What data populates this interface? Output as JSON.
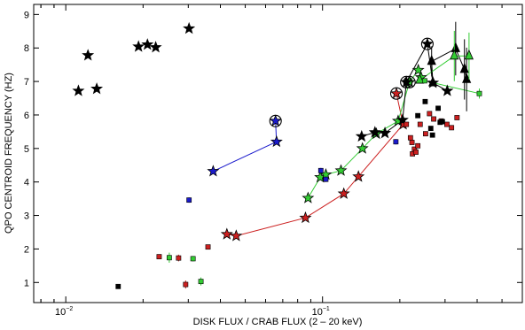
{
  "chart_data": {
    "type": "scatter",
    "xlabel": "DISK FLUX / CRAB FLUX (2 – 20 keV)",
    "ylabel": "QPO CENTROID FREQUENCY (HZ)",
    "x_scale": "log",
    "xlim": [
      0.0075,
      0.6
    ],
    "ylim": [
      0.4,
      9.3
    ],
    "x_ticks": [
      {
        "value": 0.01,
        "base": "10",
        "exp": "−2"
      },
      {
        "value": 0.1,
        "base": "10",
        "exp": "−1"
      }
    ],
    "y_ticks": [
      1,
      2,
      3,
      4,
      5,
      6,
      7,
      8,
      9
    ],
    "colors": {
      "black": "#000000",
      "blue": "#1a1acc",
      "red": "#cc2020",
      "green": "#33cc33",
      "darkred": "#a00000"
    },
    "series": [
      {
        "marker": "star",
        "color": "#000000",
        "connected": false,
        "points": [
          [
            0.0112,
            6.72
          ],
          [
            0.0122,
            7.78
          ],
          [
            0.0132,
            6.78
          ],
          [
            0.0192,
            8.04
          ],
          [
            0.0208,
            8.1
          ],
          [
            0.0224,
            8.02
          ],
          [
            0.0302,
            8.58
          ]
        ]
      },
      {
        "marker": "star",
        "color": "#1a1acc",
        "connected": true,
        "points": [
          [
            0.0375,
            4.32
          ],
          [
            0.0662,
            5.2
          ],
          [
            0.0656,
            5.82
          ]
        ],
        "circled": [
          [
            0.0656,
            5.82
          ]
        ]
      },
      {
        "marker": "star",
        "color": "#cc2020",
        "connected": true,
        "points": [
          [
            0.0424,
            2.44
          ],
          [
            0.0461,
            2.39
          ],
          [
            0.0858,
            2.93
          ],
          [
            0.121,
            3.65
          ],
          [
            0.138,
            4.16
          ],
          [
            0.206,
            5.72
          ],
          [
            0.194,
            6.64
          ]
        ],
        "circled": [
          [
            0.194,
            6.64
          ]
        ]
      },
      {
        "marker": "star",
        "color": "#33cc33",
        "connected": true,
        "points": [
          [
            0.0878,
            3.52
          ],
          [
            0.098,
            4.14
          ],
          [
            0.103,
            4.22
          ],
          [
            0.118,
            4.34
          ],
          [
            0.143,
            5.0
          ],
          [
            0.162,
            5.44
          ],
          [
            0.197,
            5.82
          ],
          [
            0.218,
            6.98
          ],
          [
            0.236,
            7.34
          ],
          [
            0.242,
            7.12
          ]
        ],
        "circled": [
          [
            0.218,
            6.98
          ]
        ]
      },
      {
        "marker": "star",
        "color": "#000000",
        "connected": true,
        "points": [
          [
            0.142,
            5.36
          ],
          [
            0.16,
            5.48
          ],
          [
            0.175,
            5.46
          ],
          [
            0.205,
            5.85
          ],
          [
            0.212,
            6.98
          ],
          [
            0.256,
            8.12
          ],
          [
            0.269,
            6.96
          ],
          [
            0.306,
            6.72
          ]
        ],
        "circled": [
          [
            0.256,
            8.12
          ],
          [
            0.212,
            6.98
          ]
        ]
      },
      {
        "marker": "triangle",
        "color": "#000000",
        "connected": true,
        "points": [
          [
            0.269,
            6.96
          ],
          [
            0.266,
            7.6
          ],
          [
            0.33,
            7.98
          ],
          [
            0.357,
            7.36
          ],
          [
            0.364,
            7.06
          ]
        ],
        "errors": [
          0,
          0.45,
          0.8,
          0.9,
          0.95
        ]
      },
      {
        "marker": "triangle",
        "color": "#33cc33",
        "connected": true,
        "points": [
          [
            0.239,
            7.04
          ],
          [
            0.326,
            7.76
          ],
          [
            0.372,
            7.76
          ]
        ],
        "errors": [
          0,
          0.75,
          0.7
        ]
      },
      {
        "marker": "square",
        "color": "#33cc33",
        "connected": true,
        "points": [
          [
            0.25,
            7.02
          ],
          [
            0.408,
            6.64
          ]
        ],
        "errors": [
          0,
          0.15
        ]
      },
      {
        "marker": "square",
        "color": "#cc2020",
        "connected": false,
        "points": [
          [
            0.0231,
            1.77
          ],
          [
            0.0275,
            1.73
          ],
          [
            0.0293,
            0.94
          ],
          [
            0.0358,
            2.06
          ],
          [
            0.212,
            5.72
          ],
          [
            0.22,
            5.32
          ],
          [
            0.223,
            5.18
          ],
          [
            0.224,
            4.84
          ],
          [
            0.228,
            4.98
          ],
          [
            0.231,
            4.89
          ],
          [
            0.235,
            5.08
          ],
          [
            0.24,
            5.72
          ],
          [
            0.252,
            5.44
          ],
          [
            0.261,
            6.04
          ],
          [
            0.271,
            5.88
          ],
          [
            0.29,
            5.82
          ],
          [
            0.305,
            5.72
          ],
          [
            0.318,
            5.62
          ],
          [
            0.334,
            5.92
          ]
        ],
        "errors": [
          0.06,
          0.1,
          0.12,
          0.06,
          0.06,
          0.06,
          0.06,
          0.06,
          0.06,
          0.06,
          0.06,
          0.06,
          0.06,
          0.06,
          0.06,
          0.06,
          0.06,
          0.06,
          0.06
        ]
      },
      {
        "marker": "square",
        "color": "#33cc33",
        "connected": false,
        "points": [
          [
            0.0253,
            1.74
          ],
          [
            0.0313,
            1.71
          ],
          [
            0.0336,
            1.03
          ]
        ],
        "errors": [
          0.15,
          0.08,
          0.12
        ]
      },
      {
        "marker": "square",
        "color": "#1a1acc",
        "connected": false,
        "points": [
          [
            0.0302,
            3.46
          ],
          [
            0.0985,
            4.34
          ],
          [
            0.103,
            4.08
          ],
          [
            0.193,
            5.2
          ]
        ],
        "errors": [
          0.08,
          0.08,
          0.08,
          0.08
        ]
      },
      {
        "marker": "square",
        "color": "#000000",
        "connected": false,
        "points": [
          [
            0.016,
            0.88
          ],
          [
            0.235,
            5.98
          ],
          [
            0.251,
            6.4
          ],
          [
            0.264,
            5.6
          ],
          [
            0.268,
            5.4
          ],
          [
            0.282,
            6.2
          ],
          [
            0.287,
            5.78
          ],
          [
            0.293,
            5.8
          ]
        ],
        "errors": [
          0,
          0.06,
          0.06,
          0.06,
          0.06,
          0.06,
          0.06,
          0.06
        ]
      }
    ]
  }
}
